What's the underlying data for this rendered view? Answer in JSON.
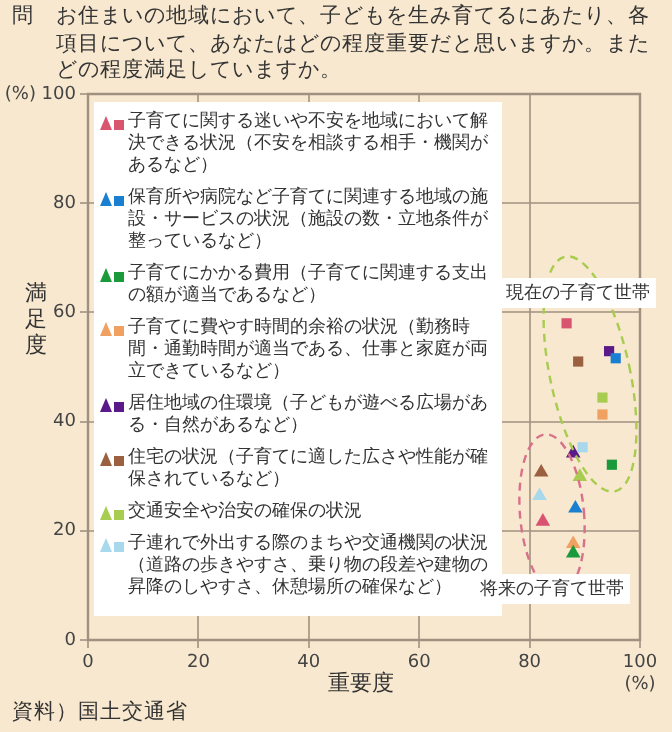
{
  "chart_data": {
    "type": "scatter",
    "title": "問　お住まいの地域において、子どもを生み育てるにあたり、各項目について、あなたはどの程度重要だと思いますか。またどの程度満足していますか。",
    "xlabel": "重要度",
    "ylabel": "満足度",
    "xlim": [
      0,
      100
    ],
    "ylim": [
      0,
      100
    ],
    "xticks": [
      0,
      20,
      40,
      60,
      80,
      {
        "value": 100,
        "label": "100\n(%)"
      }
    ],
    "yticks": [
      0,
      20,
      40,
      60,
      80,
      {
        "value": 100,
        "label": "(%) 100"
      }
    ],
    "grid": true,
    "legend": "top left",
    "annotations": [
      "現在の子育て世帯",
      "将来の子育て世帯",
      "資料）国土交通省"
    ],
    "series": [
      {
        "name": "子育てに関する迷いや不安を地域において解決できる状況（不安を相談する相手・機関があるなど）",
        "color": "#d9546e",
        "marker": "square",
        "x": [
          86.7
        ],
        "values": [
          58
        ]
      },
      {
        "color": "#d9546e",
        "marker": "triangle",
        "x": [
          82.4
        ],
        "values": [
          21.7
        ]
      },
      {
        "name": "保育所や病院など子育てに関連する地域の施設・サービスの状況（施設の数・立地条件が整っているなど）",
        "color": "#1a7fd0",
        "marker": "square",
        "x": [
          95.6
        ],
        "values": [
          51.6
        ]
      },
      {
        "color": "#1a7fd0",
        "marker": "triangle",
        "x": [
          88.3
        ],
        "values": [
          24.1
        ]
      },
      {
        "name": "子育てにかかる費用（子育てに関連する支出の額が適当であるなど）",
        "color": "#1a9a3a",
        "marker": "square",
        "x": [
          94.9
        ],
        "values": [
          32.1
        ]
      },
      {
        "color": "#1a9a3a",
        "marker": "triangle",
        "x": [
          87.9
        ],
        "values": [
          15.9
        ]
      },
      {
        "name": "子育てに費やす時間的余裕の状況（勤務時間・通勤時間が適当である、仕事と家庭が両立できているなど）",
        "color": "#f0a060",
        "marker": "square",
        "x": [
          93.2
        ],
        "values": [
          41.3
        ]
      },
      {
        "color": "#f0a060",
        "marker": "triangle",
        "x": [
          87.9
        ],
        "values": [
          17.6
        ]
      },
      {
        "name": "居住地域の住環境（子どもが遊べる広場がある・自然があるなど）",
        "color": "#5a1a8a",
        "marker": "square",
        "x": [
          94.4
        ],
        "values": [
          52.9
        ]
      },
      {
        "color": "#5a1a8a",
        "marker": "triangle",
        "x": [
          87.9
        ],
        "values": [
          34.2
        ]
      },
      {
        "name": "住宅の状況（子育てに適した広さや性能が確保されているなど）",
        "color": "#9a6040",
        "marker": "square",
        "x": [
          88.8
        ],
        "values": [
          51
        ]
      },
      {
        "color": "#9a6040",
        "marker": "triangle",
        "x": [
          82.1
        ],
        "values": [
          30.7
        ]
      },
      {
        "name": "交通安全や治安の確保の状況",
        "color": "#a8cc50",
        "marker": "square",
        "x": [
          93.2
        ],
        "values": [
          44.4
        ]
      },
      {
        "color": "#a8cc50",
        "marker": "triangle",
        "x": [
          89.1
        ],
        "values": [
          29.9
        ]
      },
      {
        "name": "子連れで外出する際のまちや交通機関の状況（道路の歩きやすさ、乗り物の段差や建物の昇降のしやすさ、休憩場所の確保など）",
        "color": "#a8d8ec",
        "marker": "square",
        "x": [
          89.6
        ],
        "values": [
          35.3
        ]
      },
      {
        "color": "#a8d8ec",
        "marker": "triangle",
        "x": [
          81.8
        ],
        "values": [
          26.4
        ]
      }
    ]
  }
}
